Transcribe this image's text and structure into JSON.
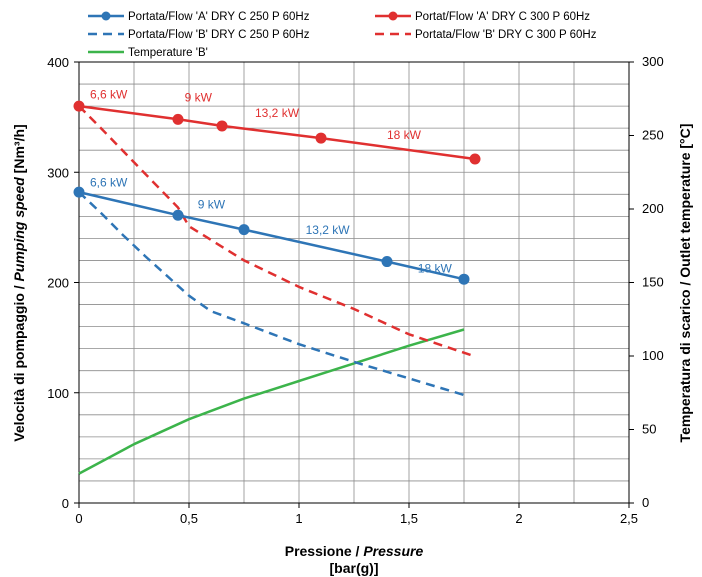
{
  "chart_data": {
    "type": "line",
    "xlabel": {
      "main": "Pressione / ",
      "italic": "Pressure",
      "unit": "[bar(g)]"
    },
    "ylabel": {
      "main": "Velocità di pompaggio / ",
      "italic": "Pumping speed",
      "unit": " [Nm³/h]"
    },
    "y2label": "Temperatura di scarico / Outlet temperature [°C]",
    "xlim": [
      0,
      2.5
    ],
    "ylim": [
      0,
      400
    ],
    "y2lim": [
      0,
      300
    ],
    "x_ticks": [
      {
        "v": 0,
        "label": "0"
      },
      {
        "v": 0.5,
        "label": "0,5"
      },
      {
        "v": 1,
        "label": "1"
      },
      {
        "v": 1.5,
        "label": "1,5"
      },
      {
        "v": 2,
        "label": "2"
      },
      {
        "v": 2.5,
        "label": "2,5"
      }
    ],
    "y_ticks": [
      {
        "v": 0,
        "label": "0"
      },
      {
        "v": 100,
        "label": "100"
      },
      {
        "v": 200,
        "label": "200"
      },
      {
        "v": 300,
        "label": "300"
      },
      {
        "v": 400,
        "label": "400"
      }
    ],
    "y2_ticks": [
      {
        "v": 0,
        "label": "0"
      },
      {
        "v": 50,
        "label": "50"
      },
      {
        "v": 100,
        "label": "100"
      },
      {
        "v": 150,
        "label": "150"
      },
      {
        "v": 200,
        "label": "200"
      },
      {
        "v": 250,
        "label": "250"
      },
      {
        "v": 300,
        "label": "300"
      }
    ],
    "grid": true,
    "legend_position": "top",
    "series": [
      {
        "name": "Portata/Flow 'A' DRY C 250 P 60Hz",
        "color": "#2e75b6",
        "style": "solid",
        "markers": true,
        "axis": "left",
        "points": [
          [
            0,
            282
          ],
          [
            0.45,
            261
          ],
          [
            0.75,
            248
          ],
          [
            1.4,
            219
          ],
          [
            1.75,
            203
          ]
        ]
      },
      {
        "name": "Portat/Flow 'A' DRY C 300 P 60Hz",
        "color": "#e03030",
        "style": "solid",
        "markers": true,
        "axis": "left",
        "points": [
          [
            0,
            360
          ],
          [
            0.45,
            348
          ],
          [
            0.65,
            342
          ],
          [
            1.1,
            331
          ],
          [
            1.8,
            312
          ]
        ]
      },
      {
        "name": "Portata/Flow 'B' DRY C 250 P 60Hz",
        "color": "#2e75b6",
        "style": "dashed",
        "markers": false,
        "axis": "left",
        "points": [
          [
            0,
            282
          ],
          [
            0.1,
            263
          ],
          [
            0.2,
            243
          ],
          [
            0.3,
            224
          ],
          [
            0.45,
            197
          ],
          [
            0.5,
            188
          ],
          [
            0.6,
            174
          ],
          [
            0.75,
            163
          ],
          [
            1,
            144
          ],
          [
            1.25,
            128
          ],
          [
            1.5,
            113
          ],
          [
            1.75,
            98
          ]
        ]
      },
      {
        "name": "Portata/Flow 'B' DRY C 300 P 60Hz",
        "color": "#e03030",
        "style": "dashed",
        "markers": false,
        "axis": "left",
        "points": [
          [
            0,
            360
          ],
          [
            0.1,
            340
          ],
          [
            0.25,
            309
          ],
          [
            0.45,
            268
          ],
          [
            0.5,
            251
          ],
          [
            0.75,
            220
          ],
          [
            1,
            196
          ],
          [
            1.25,
            176
          ],
          [
            1.5,
            153
          ],
          [
            1.8,
            133
          ]
        ]
      },
      {
        "name": "Temperature 'B'",
        "color": "#3cb44b",
        "style": "solid",
        "markers": false,
        "axis": "right",
        "points": [
          [
            0,
            20
          ],
          [
            0.25,
            40
          ],
          [
            0.5,
            57
          ],
          [
            0.75,
            71
          ],
          [
            1,
            83
          ],
          [
            1.25,
            95
          ],
          [
            1.5,
            107
          ],
          [
            1.75,
            118
          ]
        ]
      }
    ],
    "annotations": [
      {
        "text": "6,6 kW",
        "x": 0.05,
        "y": 367,
        "color": "#e03030"
      },
      {
        "text": "9 kW",
        "x": 0.48,
        "y": 364,
        "color": "#e03030"
      },
      {
        "text": "13,2 kW",
        "x": 0.8,
        "y": 350,
        "color": "#e03030"
      },
      {
        "text": "18 kW",
        "x": 1.4,
        "y": 330,
        "color": "#e03030"
      },
      {
        "text": "6,6 kW",
        "x": 0.05,
        "y": 287,
        "color": "#2e75b6"
      },
      {
        "text": "9 kW",
        "x": 0.54,
        "y": 267,
        "color": "#2e75b6"
      },
      {
        "text": "13,2 kW",
        "x": 1.03,
        "y": 244,
        "color": "#2e75b6"
      },
      {
        "text": "18 kW",
        "x": 1.54,
        "y": 209,
        "color": "#2e75b6"
      }
    ]
  }
}
